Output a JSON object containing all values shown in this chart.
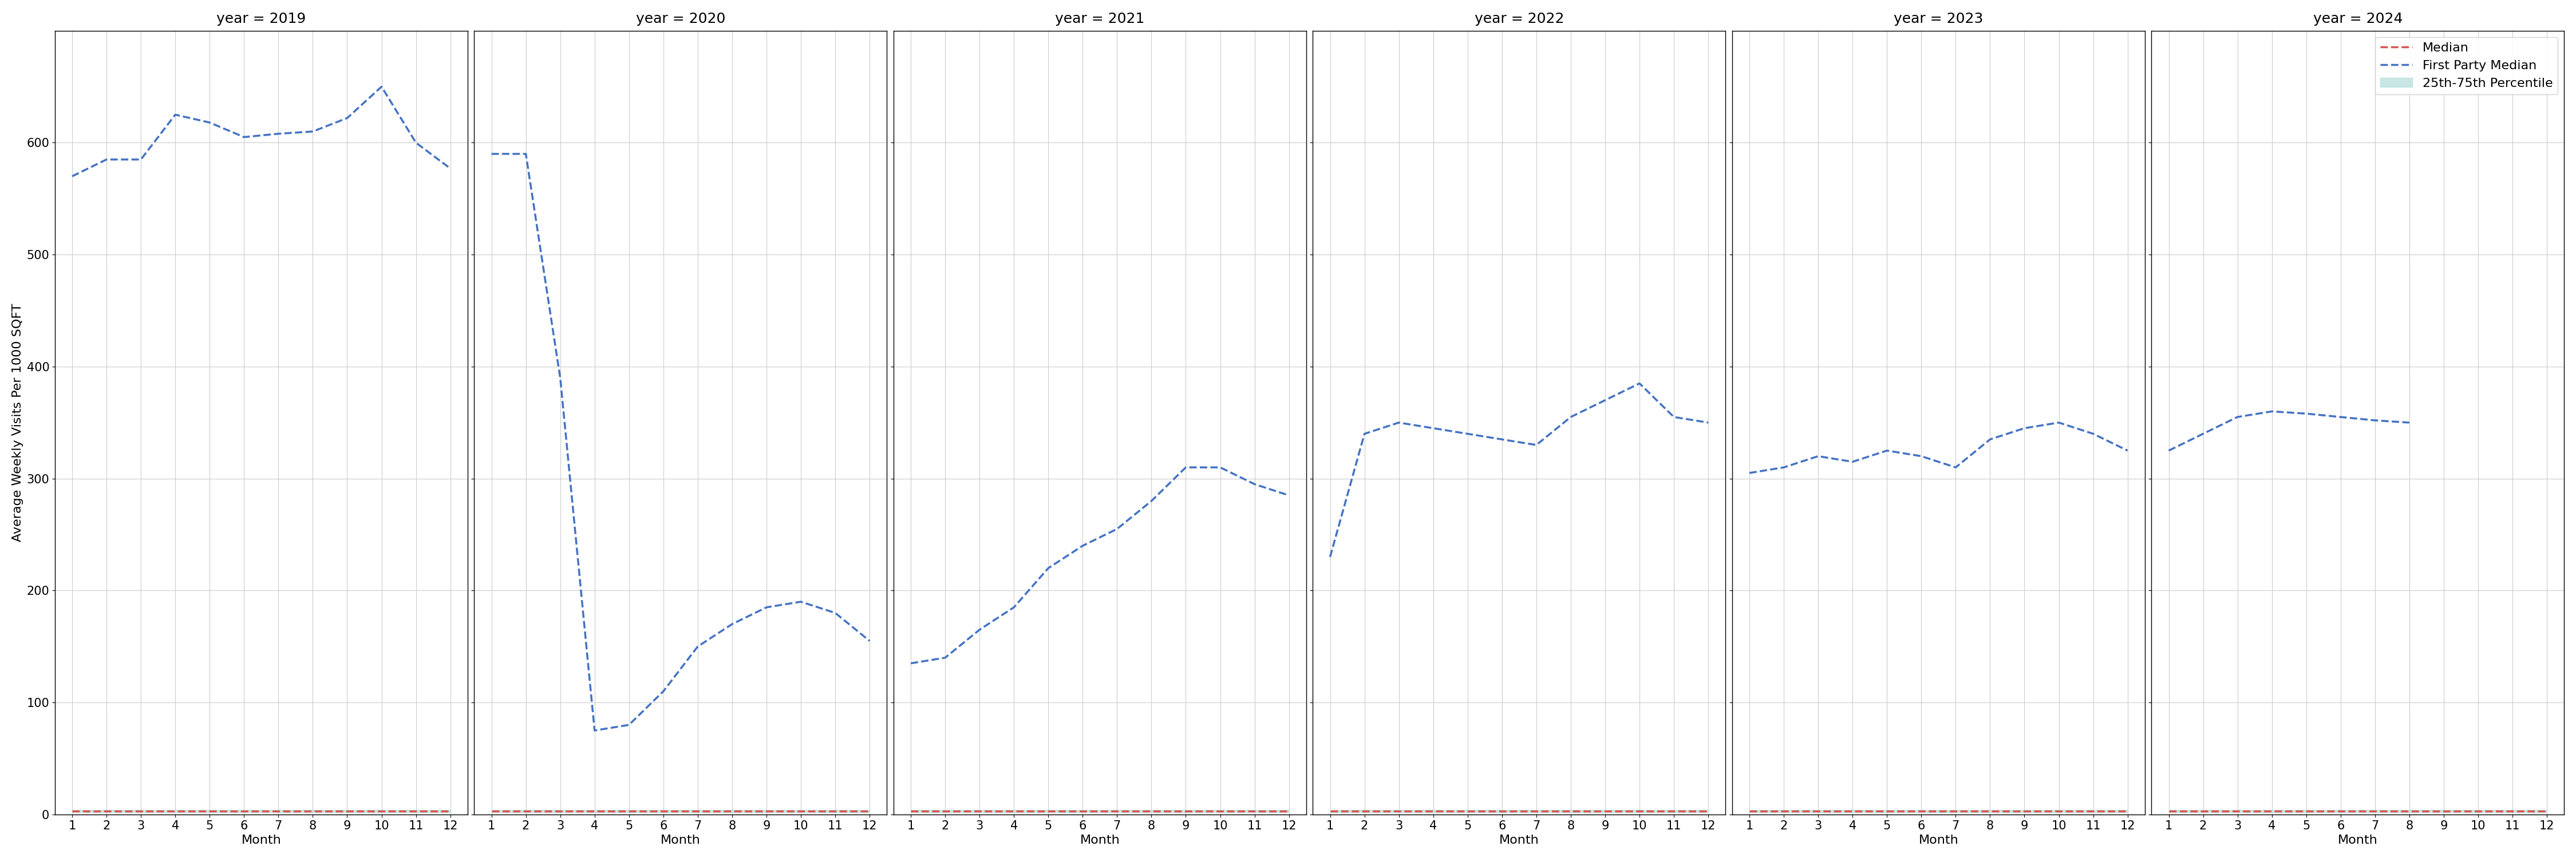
{
  "years": [
    2019,
    2020,
    2021,
    2022,
    2023,
    2024
  ],
  "first_party_median": {
    "2019": {
      "months": [
        1,
        2,
        3,
        4,
        5,
        6,
        7,
        8,
        9,
        10,
        11,
        12
      ],
      "values": [
        570,
        585,
        585,
        625,
        618,
        605,
        608,
        610,
        622,
        650,
        600,
        577
      ]
    },
    "2020": {
      "months": [
        1,
        2,
        3,
        4,
        5,
        6,
        7,
        8,
        9,
        10,
        11,
        12
      ],
      "values": [
        590,
        590,
        390,
        75,
        80,
        110,
        150,
        170,
        185,
        190,
        180,
        155
      ]
    },
    "2021": {
      "months": [
        1,
        2,
        3,
        4,
        5,
        6,
        7,
        8,
        9,
        10,
        11,
        12
      ],
      "values": [
        135,
        140,
        165,
        185,
        220,
        240,
        255,
        280,
        310,
        310,
        295,
        285
      ]
    },
    "2022": {
      "months": [
        1,
        2,
        3,
        4,
        5,
        6,
        7,
        8,
        9,
        10,
        11,
        12
      ],
      "values": [
        230,
        340,
        350,
        345,
        340,
        335,
        330,
        355,
        370,
        385,
        355,
        350
      ]
    },
    "2023": {
      "months": [
        1,
        2,
        3,
        4,
        5,
        6,
        7,
        8,
        9,
        10,
        11,
        12
      ],
      "values": [
        305,
        310,
        320,
        315,
        325,
        320,
        310,
        335,
        345,
        350,
        340,
        325
      ]
    },
    "2024": {
      "months": [
        1,
        2,
        3,
        4,
        5,
        6,
        7,
        8
      ],
      "values": [
        325,
        340,
        355,
        360,
        358,
        355,
        352,
        350
      ]
    }
  },
  "median": {
    "2019": {
      "months": [
        1,
        2,
        3,
        4,
        5,
        6,
        7,
        8,
        9,
        10,
        11,
        12
      ],
      "values": [
        3,
        3,
        3,
        3,
        3,
        3,
        3,
        3,
        3,
        3,
        3,
        3
      ]
    },
    "2020": {
      "months": [
        1,
        2,
        3,
        4,
        5,
        6,
        7,
        8,
        9,
        10,
        11,
        12
      ],
      "values": [
        3,
        3,
        3,
        3,
        3,
        3,
        3,
        3,
        3,
        3,
        3,
        3
      ]
    },
    "2021": {
      "months": [
        1,
        2,
        3,
        4,
        5,
        6,
        7,
        8,
        9,
        10,
        11,
        12
      ],
      "values": [
        3,
        3,
        3,
        3,
        3,
        3,
        3,
        3,
        3,
        3,
        3,
        3
      ]
    },
    "2022": {
      "months": [
        1,
        2,
        3,
        4,
        5,
        6,
        7,
        8,
        9,
        10,
        11,
        12
      ],
      "values": [
        3,
        3,
        3,
        3,
        3,
        3,
        3,
        3,
        3,
        3,
        3,
        3
      ]
    },
    "2023": {
      "months": [
        1,
        2,
        3,
        4,
        5,
        6,
        7,
        8,
        9,
        10,
        11,
        12
      ],
      "values": [
        3,
        3,
        3,
        3,
        3,
        3,
        3,
        3,
        3,
        3,
        3,
        3
      ]
    },
    "2024": {
      "months": [
        1,
        2,
        3,
        4,
        5,
        6,
        7,
        8,
        9,
        10,
        11,
        12
      ],
      "values": [
        3,
        3,
        3,
        3,
        3,
        3,
        3,
        3,
        3,
        3,
        3,
        3
      ]
    }
  },
  "percentile_band": {
    "2019": {
      "months": [
        1,
        2,
        3,
        4,
        5,
        6,
        7,
        8,
        9,
        10,
        11,
        12
      ],
      "lower": [
        2,
        2,
        2,
        2,
        2,
        2,
        2,
        2,
        2,
        2,
        2,
        2
      ],
      "upper": [
        4,
        4,
        4,
        4,
        4,
        4,
        4,
        4,
        4,
        4,
        4,
        4
      ]
    },
    "2020": {
      "months": [
        1,
        2,
        3,
        4,
        5,
        6,
        7,
        8,
        9,
        10,
        11,
        12
      ],
      "lower": [
        2,
        2,
        2,
        2,
        2,
        2,
        2,
        2,
        2,
        2,
        2,
        2
      ],
      "upper": [
        4,
        4,
        4,
        4,
        4,
        4,
        4,
        4,
        4,
        4,
        4,
        4
      ]
    },
    "2021": {
      "months": [
        1,
        2,
        3,
        4,
        5,
        6,
        7,
        8,
        9,
        10,
        11,
        12
      ],
      "lower": [
        2,
        2,
        2,
        2,
        2,
        2,
        2,
        2,
        2,
        2,
        2,
        2
      ],
      "upper": [
        4,
        4,
        4,
        4,
        4,
        4,
        4,
        4,
        4,
        4,
        4,
        4
      ]
    },
    "2022": {
      "months": [
        1,
        2,
        3,
        4,
        5,
        6,
        7,
        8,
        9,
        10,
        11,
        12
      ],
      "lower": [
        2,
        2,
        2,
        2,
        2,
        2,
        2,
        2,
        2,
        2,
        2,
        2
      ],
      "upper": [
        4,
        4,
        4,
        4,
        4,
        4,
        4,
        4,
        4,
        4,
        4,
        4
      ]
    },
    "2023": {
      "months": [
        1,
        2,
        3,
        4,
        5,
        6,
        7,
        8,
        9,
        10,
        11,
        12
      ],
      "lower": [
        2,
        2,
        2,
        2,
        2,
        2,
        2,
        2,
        2,
        2,
        2,
        2
      ],
      "upper": [
        4,
        4,
        4,
        4,
        4,
        4,
        4,
        4,
        4,
        4,
        4,
        4
      ]
    },
    "2024": {
      "months": [
        1,
        2,
        3,
        4,
        5,
        6,
        7,
        8,
        9,
        10,
        11,
        12
      ],
      "lower": [
        2,
        2,
        2,
        2,
        2,
        2,
        2,
        2,
        2,
        2,
        2,
        2
      ],
      "upper": [
        4,
        4,
        4,
        4,
        4,
        4,
        4,
        4,
        4,
        4,
        4,
        4
      ]
    }
  },
  "ylabel": "Average Weekly Visits Per 1000 SQFT",
  "xlabel": "Month",
  "ylim": [
    0,
    700
  ],
  "yticks": [
    0,
    100,
    200,
    300,
    400,
    500,
    600
  ],
  "xticks": [
    1,
    2,
    3,
    4,
    5,
    6,
    7,
    8,
    9,
    10,
    11,
    12
  ],
  "median_color": "#d9534f",
  "fp_color": "#4472C4",
  "band_color": "#b2dfdb",
  "background_color": "#ffffff",
  "grid_color": "#cccccc",
  "legend_labels": [
    "Median",
    "First Party Median",
    "25th-75th Percentile"
  ],
  "title_fontsize": 18,
  "label_fontsize": 16,
  "tick_fontsize": 15,
  "legend_fontsize": 16,
  "line_width": 2.5
}
